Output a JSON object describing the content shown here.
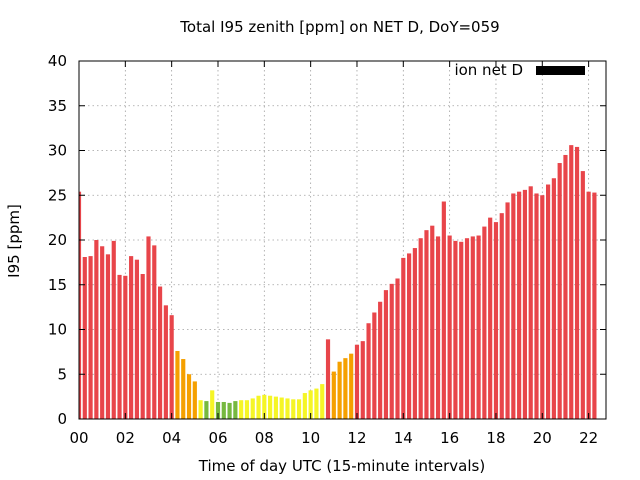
{
  "chart_data": {
    "type": "bar",
    "title": "Total I95 zenith [ppm] on NET D, DoY=059",
    "xlabel": "Time of day UTC (15-minute intervals)",
    "ylabel": "I95 [ppm]",
    "legend": {
      "label": "ion net D",
      "placement": "top-right",
      "color": "#000000"
    },
    "grid": true,
    "xlim": [
      0,
      22.75
    ],
    "ylim": [
      0,
      40
    ],
    "x_tick_labels": [
      "00",
      "02",
      "04",
      "06",
      "08",
      "10",
      "12",
      "14",
      "16",
      "18",
      "20",
      "22"
    ],
    "x_tick_values": [
      0,
      2,
      4,
      6,
      8,
      10,
      12,
      14,
      16,
      18,
      20,
      22
    ],
    "y_ticks": [
      0,
      5,
      10,
      15,
      20,
      25,
      30,
      35,
      40
    ],
    "interval_hours": 0.25,
    "values": [
      25.4,
      18.1,
      18.2,
      20.0,
      19.3,
      18.4,
      19.9,
      16.1,
      16.0,
      18.2,
      17.8,
      16.2,
      20.4,
      19.4,
      14.8,
      12.7,
      11.6,
      7.6,
      6.7,
      5.0,
      4.2,
      2.1,
      2.0,
      3.2,
      1.9,
      1.9,
      1.8,
      2.0,
      2.1,
      2.1,
      2.3,
      2.6,
      2.7,
      2.6,
      2.5,
      2.4,
      2.3,
      2.2,
      2.2,
      2.9,
      3.2,
      3.4,
      3.9,
      8.9,
      5.3,
      6.4,
      6.8,
      7.3,
      8.3,
      8.7,
      10.7,
      11.9,
      13.1,
      14.4,
      15.1,
      15.7,
      18.0,
      18.5,
      19.1,
      20.2,
      21.1,
      21.6,
      20.4,
      24.3,
      20.5,
      19.9,
      19.8,
      20.2,
      20.4,
      20.5,
      21.5,
      22.5,
      22.0,
      23.0,
      24.2,
      25.2,
      25.4,
      25.6,
      26.0,
      25.2,
      25.0,
      26.2,
      26.9,
      28.6,
      29.5,
      30.6,
      30.4,
      27.7,
      25.4,
      25.3
    ],
    "color_scale": [
      {
        "max": 2.0,
        "color": "#76b83f"
      },
      {
        "max": 4.0,
        "color": "#f5f526"
      },
      {
        "max": 8.0,
        "color": "#f5a000"
      },
      {
        "max": 1000,
        "color": "#e8454a"
      }
    ]
  }
}
